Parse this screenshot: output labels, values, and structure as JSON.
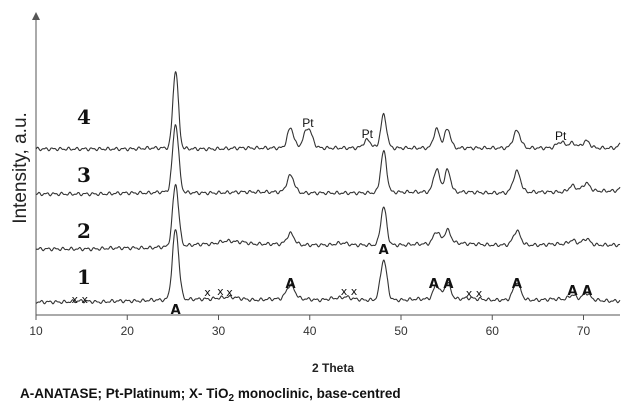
{
  "chart_data": {
    "type": "line",
    "xlabel": "2 Theta",
    "ylabel": "Intensity, a.u.",
    "xlim": [
      10,
      74
    ],
    "xticks": [
      10,
      20,
      30,
      40,
      50,
      60,
      70
    ],
    "grid": false,
    "legend": "none",
    "line_color": "#333333",
    "series": [
      {
        "name": "1",
        "baseline": 0,
        "noise": [
          [
            13,
            3
          ],
          [
            15,
            4
          ],
          [
            17,
            3
          ],
          [
            19,
            4
          ],
          [
            21,
            4
          ],
          [
            23,
            5
          ],
          [
            29,
            6
          ],
          [
            30,
            7
          ],
          [
            31,
            8
          ],
          [
            34,
            5
          ],
          [
            36,
            6
          ],
          [
            39.5,
            6
          ],
          [
            41,
            5
          ],
          [
            43,
            7
          ],
          [
            44,
            8
          ],
          [
            45,
            6
          ],
          [
            46,
            5
          ],
          [
            50,
            5
          ],
          [
            52,
            6
          ],
          [
            56,
            6
          ],
          [
            57.5,
            7
          ],
          [
            58.5,
            6
          ],
          [
            60,
            5
          ],
          [
            65,
            5
          ],
          [
            67,
            6
          ],
          [
            69,
            5
          ],
          [
            71,
            5
          ],
          [
            73,
            4
          ]
        ],
        "peaks": [
          [
            25.3,
            70,
            0.35
          ],
          [
            37.9,
            14,
            0.45
          ],
          [
            48.1,
            40,
            0.35
          ],
          [
            53.9,
            14,
            0.35
          ],
          [
            55.1,
            16,
            0.35
          ],
          [
            62.7,
            18,
            0.4
          ],
          [
            68.8,
            5,
            0.4
          ],
          [
            70.3,
            7,
            0.4
          ],
          [
            75,
            6,
            0.4
          ]
        ]
      },
      {
        "name": "2",
        "baseline": 55,
        "noise": [
          [
            13,
            1
          ],
          [
            16,
            1
          ],
          [
            19,
            2
          ],
          [
            22,
            2
          ],
          [
            24,
            3
          ],
          [
            29,
            6
          ],
          [
            31,
            9
          ],
          [
            32.5,
            8
          ],
          [
            34,
            6
          ],
          [
            36,
            6
          ],
          [
            40,
            5
          ],
          [
            42,
            5
          ],
          [
            43.5,
            7
          ],
          [
            45,
            5
          ],
          [
            47,
            5
          ],
          [
            50,
            5
          ],
          [
            52,
            6
          ],
          [
            56,
            7
          ],
          [
            58,
            6
          ],
          [
            60,
            5
          ],
          [
            65,
            5
          ],
          [
            67,
            6
          ],
          [
            72,
            5
          ],
          [
            74,
            5
          ]
        ],
        "peaks": [
          [
            25.3,
            62,
            0.33
          ],
          [
            37.9,
            11,
            0.4
          ],
          [
            48.1,
            38,
            0.32
          ],
          [
            53.9,
            12,
            0.35
          ],
          [
            55.1,
            13,
            0.35
          ],
          [
            62.7,
            14,
            0.4
          ],
          [
            68.8,
            4,
            0.4
          ],
          [
            70.3,
            6,
            0.4
          ]
        ]
      },
      {
        "name": "3",
        "baseline": 110,
        "noise": [
          [
            13,
            1
          ],
          [
            17,
            1
          ],
          [
            20,
            2
          ],
          [
            22,
            2
          ],
          [
            24,
            3
          ],
          [
            29,
            2
          ],
          [
            33,
            3
          ],
          [
            36,
            3
          ],
          [
            40,
            2
          ],
          [
            45,
            2
          ],
          [
            51,
            3
          ],
          [
            57,
            3
          ],
          [
            60,
            2
          ],
          [
            65,
            3
          ],
          [
            67,
            3
          ],
          [
            72,
            4
          ]
        ],
        "peaks": [
          [
            25.3,
            68,
            0.33
          ],
          [
            37.9,
            17,
            0.4
          ],
          [
            48.1,
            41,
            0.32
          ],
          [
            53.9,
            23,
            0.33
          ],
          [
            55.1,
            22,
            0.33
          ],
          [
            62.7,
            21,
            0.4
          ],
          [
            68.8,
            6,
            0.4
          ],
          [
            70.3,
            8,
            0.4
          ],
          [
            74.5,
            7,
            0.4
          ]
        ]
      },
      {
        "name": "4",
        "baseline": 155,
        "noise": [
          [
            13,
            1
          ],
          [
            17,
            1
          ],
          [
            20,
            1
          ],
          [
            23,
            2
          ],
          [
            29,
            1
          ],
          [
            33,
            2
          ],
          [
            36,
            2
          ],
          [
            42,
            2
          ],
          [
            44,
            2
          ],
          [
            51,
            2
          ],
          [
            57,
            2
          ],
          [
            60,
            2
          ],
          [
            65,
            2
          ],
          [
            72,
            2
          ]
        ],
        "peaks": [
          [
            25.3,
            78,
            0.3
          ],
          [
            37.9,
            20,
            0.35
          ],
          [
            39.8,
            20,
            0.45
          ],
          [
            46.3,
            8,
            0.4
          ],
          [
            48.1,
            33,
            0.32
          ],
          [
            53.9,
            19,
            0.33
          ],
          [
            55.1,
            19,
            0.33
          ],
          [
            62.7,
            17,
            0.4
          ],
          [
            67.5,
            6,
            0.45
          ],
          [
            68.8,
            5,
            0.4
          ],
          [
            70.3,
            7,
            0.4
          ],
          [
            74.5,
            9,
            0.4
          ]
        ]
      }
    ],
    "curve_labels": [
      "1",
      "2",
      "3",
      "4"
    ],
    "annotations": [
      {
        "text": "A",
        "x": 25.3,
        "y": -9,
        "style": "A"
      },
      {
        "text": "x x",
        "x": 14.8,
        "y": 2,
        "style": "x"
      },
      {
        "text": "x",
        "x": 28.8,
        "y": 9,
        "style": "x"
      },
      {
        "text": "x",
        "x": 30.2,
        "y": 10,
        "style": "x"
      },
      {
        "text": "x",
        "x": 31.2,
        "y": 9,
        "style": "x"
      },
      {
        "text": "A",
        "x": 37.9,
        "y": 17,
        "style": "A"
      },
      {
        "text": "x x",
        "x": 44.3,
        "y": 10,
        "style": "x"
      },
      {
        "text": "A",
        "x": 48.1,
        "y": 51,
        "style": "A"
      },
      {
        "text": "x x",
        "x": 58,
        "y": 8,
        "style": "x"
      },
      {
        "text": "A A",
        "x": 54.4,
        "y": 17,
        "style": "A"
      },
      {
        "text": "A",
        "x": 62.7,
        "y": 17,
        "style": "A"
      },
      {
        "text": "A A",
        "x": 69.6,
        "y": 10,
        "style": "A"
      },
      {
        "text": "Pt",
        "x": 39.8,
        "y": 178,
        "style": "pt"
      },
      {
        "text": "Pt",
        "x": 46.3,
        "y": 167,
        "style": "pt"
      },
      {
        "text": "Pt",
        "x": 67.5,
        "y": 165,
        "style": "pt"
      }
    ]
  },
  "caption": {
    "part1": "A-ANATASE; Pt-Platinum; X- TiO",
    "subscript": "2",
    "part2": " monoclinic, base-centred"
  }
}
